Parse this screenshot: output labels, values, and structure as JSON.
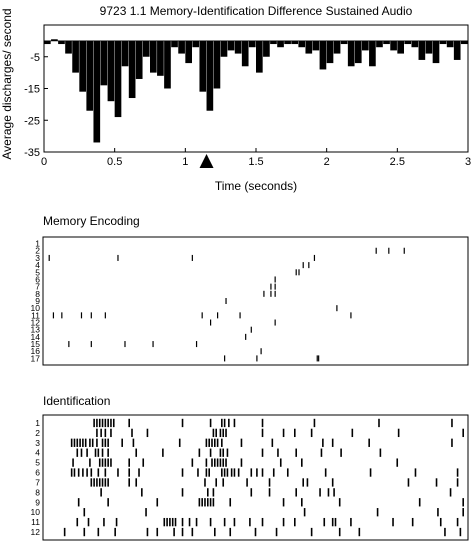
{
  "chart_data": [
    {
      "type": "bar",
      "title": "9723 1.1 Memory-Identification Difference Sustained Audio",
      "xlabel": "Time (seconds)",
      "ylabel": "Average discharges/ second",
      "xlim": [
        0,
        3
      ],
      "ylim": [
        -35,
        5
      ],
      "xticks": [
        "0",
        "0.5",
        "1",
        "1.5",
        "2",
        "2.5",
        "3"
      ],
      "yticks": [
        "-5",
        "-15",
        "-25",
        "-35"
      ],
      "marker_time": 1.15,
      "bin_width": 0.05,
      "x": [
        0.025,
        0.075,
        0.125,
        0.175,
        0.225,
        0.275,
        0.325,
        0.375,
        0.425,
        0.475,
        0.525,
        0.575,
        0.625,
        0.675,
        0.725,
        0.775,
        0.825,
        0.875,
        0.925,
        0.975,
        1.025,
        1.075,
        1.125,
        1.175,
        1.225,
        1.275,
        1.325,
        1.375,
        1.425,
        1.475,
        1.525,
        1.575,
        1.625,
        1.675,
        1.725,
        1.775,
        1.825,
        1.875,
        1.925,
        1.975,
        2.025,
        2.075,
        2.125,
        2.175,
        2.225,
        2.275,
        2.325,
        2.375,
        2.425,
        2.475,
        2.525,
        2.575,
        2.625,
        2.675,
        2.725,
        2.775,
        2.825,
        2.875,
        2.925,
        2.975
      ],
      "values": [
        -1,
        0.5,
        -1,
        -4,
        -10,
        -16,
        -22,
        -32,
        -14,
        -19,
        -24,
        -8,
        -18,
        -12,
        -5,
        -10,
        -11,
        -15,
        -2,
        -4,
        -7,
        -2,
        -16,
        -22,
        -15,
        -5,
        -3,
        -4,
        -8,
        -2,
        -10,
        -5,
        -1,
        -2,
        -1,
        -1,
        -2,
        -4,
        -3,
        -9,
        -7,
        -4,
        -1,
        -8,
        -7,
        -3,
        -8,
        -2,
        -1,
        -3,
        -4,
        -1,
        -2,
        -6,
        -4,
        -7,
        -1,
        -2,
        -6,
        -1
      ]
    },
    {
      "type": "raster",
      "title": "Memory Encoding",
      "xlim": [
        0,
        3
      ],
      "trial_labels": [
        "1",
        "2",
        "3",
        "4",
        "5",
        "6",
        "7",
        "8",
        "9",
        "10",
        "11",
        "12",
        "13",
        "14",
        "15",
        "16",
        "17"
      ],
      "spikes": [
        [],
        [
          2.36,
          2.45,
          2.56
        ],
        [
          0.03,
          0.52,
          1.05,
          1.92
        ],
        [
          1.88,
          1.84
        ],
        [
          1.81,
          1.79
        ],
        [
          1.64
        ],
        [
          1.61,
          1.64
        ],
        [
          1.56,
          1.61,
          1.64
        ],
        [
          1.29
        ],
        [
          2.08
        ],
        [
          0.06,
          0.12,
          0.26,
          0.33,
          0.43,
          1.12,
          1.23,
          1.39,
          2.18
        ],
        [
          1.64,
          1.18
        ],
        [
          1.47
        ],
        [
          1.43
        ],
        [
          0.17,
          0.33,
          0.57,
          0.77,
          1.08
        ],
        [
          1.54
        ],
        [
          1.28,
          1.51,
          1.94,
          1.95
        ]
      ]
    },
    {
      "type": "raster",
      "title": "Identification",
      "xlim": [
        0,
        3
      ],
      "trial_labels": [
        "1",
        "2",
        "3",
        "4",
        "5",
        "6",
        "7",
        "8",
        "9",
        "10",
        "11",
        "12"
      ],
      "spikes": [
        [
          0.35,
          0.37,
          0.39,
          0.41,
          0.43,
          0.45,
          0.47,
          0.49,
          0.6,
          0.98,
          1.18,
          1.26,
          1.28,
          1.31,
          1.35,
          1.55,
          1.92,
          2.38,
          2.9
        ],
        [
          0.37,
          0.4,
          0.43,
          0.47,
          0.62,
          0.73,
          1.2,
          1.22,
          1.25,
          1.27,
          1.29,
          1.55,
          1.7,
          1.78,
          1.9,
          2.19,
          2.52,
          2.98
        ],
        [
          0.19,
          0.21,
          0.23,
          0.25,
          0.27,
          0.29,
          0.32,
          0.34,
          0.37,
          0.41,
          0.43,
          0.45,
          0.55,
          0.63,
          0.96,
          1.15,
          1.17,
          1.19,
          1.21,
          1.23,
          1.26,
          1.4,
          1.62,
          1.98,
          2.05,
          2.31,
          2.9
        ],
        [
          0.23,
          0.26,
          0.3,
          0.36,
          0.38,
          0.41,
          0.45,
          0.65,
          0.84,
          1.1,
          1.18,
          1.25,
          1.27,
          1.3,
          1.55,
          1.66,
          1.79,
          1.97,
          2.11,
          2.39
        ],
        [
          0.2,
          0.32,
          0.39,
          0.41,
          0.43,
          0.45,
          0.47,
          0.6,
          0.7,
          1.05,
          1.15,
          1.19,
          1.21,
          1.23,
          1.25,
          1.27,
          1.29,
          1.4,
          1.68,
          1.83,
          2.51
        ],
        [
          0.19,
          0.21,
          0.24,
          0.27,
          0.3,
          0.33,
          0.38,
          0.43,
          0.52,
          0.6,
          0.67,
          0.98,
          1.09,
          1.15,
          1.17,
          1.26,
          1.28,
          1.3,
          1.33,
          1.35,
          1.38,
          1.47,
          1.51,
          1.55,
          1.63,
          1.73,
          2.0,
          2.32,
          2.64,
          2.94
        ],
        [
          0.33,
          0.35,
          0.37,
          0.39,
          0.41,
          0.43,
          0.45,
          0.6,
          0.65,
          1.14,
          1.22,
          1.27,
          1.44,
          1.6,
          1.84,
          1.87,
          2.05,
          2.59,
          2.79,
          2.94
        ],
        [
          0.4,
          0.69,
          0.98,
          1.16,
          1.2,
          1.47,
          1.6,
          1.79,
          1.96,
          2.02,
          2.06,
          2.89
        ],
        [
          0.24,
          0.45,
          0.8,
          1.1,
          1.12,
          1.14,
          1.16,
          1.18,
          1.2,
          1.32,
          1.7,
          1.83,
          2.1,
          2.67,
          2.98
        ],
        [
          0.28,
          0.72,
          1.85,
          2.37,
          2.8,
          2.98
        ],
        [
          0.23,
          0.31,
          0.42,
          0.51,
          0.85,
          0.87,
          0.89,
          0.91,
          0.93,
          0.98,
          1.03,
          1.08,
          1.18,
          1.28,
          1.35,
          1.46,
          1.55,
          1.7,
          1.78,
          1.99,
          2.05,
          2.07,
          2.18,
          2.48,
          2.62,
          2.82,
          2.94
        ],
        [
          0.14,
          0.28,
          0.38,
          0.5,
          0.73,
          0.8,
          0.92,
          0.98,
          1.05,
          1.21,
          1.32,
          1.5,
          1.65,
          1.9,
          2.1,
          2.24,
          2.85,
          2.96
        ]
      ]
    }
  ]
}
